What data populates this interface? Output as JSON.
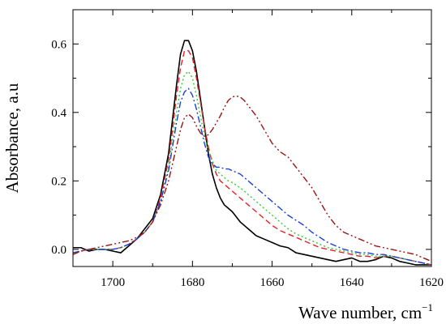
{
  "chart_data": {
    "type": "line",
    "title": "",
    "xlabel": "Wave number, cm",
    "xlabel_superscript": "−1",
    "ylabel": "Absorbance, a.u",
    "xlim": [
      1710,
      1620
    ],
    "x_reversed": true,
    "ylim": [
      -0.05,
      0.7
    ],
    "x_ticks": [
      1700,
      1680,
      1660,
      1640,
      1620
    ],
    "x_tick_labels": [
      "1700",
      "1680",
      "1660",
      "1640",
      "1620"
    ],
    "y_ticks": [
      0.0,
      0.2,
      0.4,
      0.6
    ],
    "y_tick_labels": [
      "0.0",
      "0.2",
      "0.4",
      "0.6"
    ],
    "grid": false,
    "legend": "none",
    "series": [
      {
        "color": "#000000",
        "dash": "solid",
        "x": [
          1710,
          1708,
          1706,
          1704,
          1702,
          1700,
          1698,
          1696,
          1694,
          1692,
          1690,
          1688,
          1686,
          1685,
          1684,
          1683,
          1682,
          1681,
          1680,
          1679,
          1678,
          1677,
          1676,
          1675,
          1674,
          1673,
          1672,
          1671,
          1670,
          1668,
          1666,
          1664,
          1662,
          1660,
          1658,
          1656,
          1654,
          1652,
          1650,
          1648,
          1646,
          1644,
          1642,
          1640,
          1638,
          1636,
          1634,
          1632,
          1630,
          1628,
          1626,
          1624,
          1622,
          1620
        ],
        "y": [
          0.005,
          0.005,
          -0.005,
          0.0,
          0.0,
          -0.005,
          -0.01,
          0.01,
          0.03,
          0.06,
          0.09,
          0.16,
          0.28,
          0.38,
          0.48,
          0.57,
          0.61,
          0.61,
          0.58,
          0.52,
          0.44,
          0.36,
          0.28,
          0.22,
          0.18,
          0.15,
          0.13,
          0.12,
          0.11,
          0.08,
          0.06,
          0.04,
          0.03,
          0.02,
          0.01,
          0.005,
          -0.01,
          -0.015,
          -0.02,
          -0.025,
          -0.03,
          -0.035,
          -0.03,
          -0.025,
          -0.035,
          -0.035,
          -0.03,
          -0.02,
          -0.025,
          -0.035,
          -0.04,
          -0.045,
          -0.045,
          -0.045
        ]
      },
      {
        "color": "#e8202a",
        "dash": "dashed",
        "x": [
          1710,
          1708,
          1706,
          1704,
          1702,
          1700,
          1698,
          1696,
          1694,
          1692,
          1690,
          1688,
          1686,
          1685,
          1684,
          1683,
          1682,
          1681,
          1680,
          1679,
          1678,
          1677,
          1676,
          1675,
          1674,
          1673,
          1672,
          1671,
          1670,
          1668,
          1666,
          1664,
          1662,
          1660,
          1658,
          1656,
          1654,
          1652,
          1650,
          1648,
          1646,
          1644,
          1642,
          1640,
          1638,
          1636,
          1634,
          1632,
          1630,
          1628,
          1626,
          1624,
          1622,
          1620
        ],
        "y": [
          -0.01,
          -0.005,
          0.0,
          0.0,
          0.0,
          0.0,
          0.005,
          0.015,
          0.03,
          0.05,
          0.08,
          0.15,
          0.26,
          0.35,
          0.45,
          0.53,
          0.58,
          0.58,
          0.56,
          0.5,
          0.43,
          0.36,
          0.3,
          0.25,
          0.22,
          0.2,
          0.19,
          0.18,
          0.17,
          0.15,
          0.13,
          0.11,
          0.09,
          0.07,
          0.055,
          0.045,
          0.035,
          0.025,
          0.015,
          0.005,
          0.0,
          -0.005,
          -0.01,
          -0.015,
          -0.02,
          -0.02,
          -0.025,
          -0.02,
          -0.02,
          -0.025,
          -0.03,
          -0.035,
          -0.04,
          -0.045
        ]
      },
      {
        "color": "#2ed02e",
        "dash": "dotted",
        "x": [
          1710,
          1708,
          1706,
          1704,
          1702,
          1700,
          1698,
          1696,
          1694,
          1692,
          1690,
          1688,
          1686,
          1685,
          1684,
          1683,
          1682,
          1681,
          1680,
          1679,
          1678,
          1677,
          1676,
          1675,
          1674,
          1673,
          1672,
          1671,
          1670,
          1668,
          1666,
          1664,
          1662,
          1660,
          1658,
          1656,
          1654,
          1652,
          1650,
          1648,
          1646,
          1644,
          1642,
          1640,
          1638,
          1636,
          1634,
          1632,
          1630,
          1628,
          1626,
          1624,
          1622,
          1620
        ],
        "y": [
          -0.01,
          -0.005,
          0.0,
          0.0,
          0.0,
          0.0,
          0.005,
          0.015,
          0.03,
          0.05,
          0.08,
          0.14,
          0.24,
          0.32,
          0.4,
          0.47,
          0.51,
          0.52,
          0.5,
          0.45,
          0.39,
          0.33,
          0.29,
          0.26,
          0.23,
          0.22,
          0.21,
          0.2,
          0.195,
          0.18,
          0.16,
          0.14,
          0.12,
          0.1,
          0.08,
          0.06,
          0.045,
          0.035,
          0.025,
          0.015,
          0.005,
          0.0,
          -0.005,
          -0.01,
          -0.015,
          -0.015,
          -0.02,
          -0.02,
          -0.02,
          -0.025,
          -0.03,
          -0.035,
          -0.04,
          -0.045
        ]
      },
      {
        "color": "#1a3fd8",
        "dash": "dashdot",
        "x": [
          1710,
          1708,
          1706,
          1704,
          1702,
          1700,
          1698,
          1696,
          1694,
          1692,
          1690,
          1688,
          1686,
          1685,
          1684,
          1683,
          1682,
          1681,
          1680,
          1679,
          1678,
          1677,
          1676,
          1675,
          1674,
          1673,
          1672,
          1671,
          1670,
          1668,
          1666,
          1664,
          1662,
          1660,
          1658,
          1656,
          1654,
          1652,
          1650,
          1648,
          1646,
          1644,
          1642,
          1640,
          1638,
          1636,
          1634,
          1632,
          1630,
          1628,
          1626,
          1624,
          1622,
          1620
        ],
        "y": [
          -0.01,
          -0.005,
          0.0,
          0.0,
          0.0,
          0.0,
          0.005,
          0.015,
          0.03,
          0.05,
          0.08,
          0.14,
          0.23,
          0.3,
          0.37,
          0.43,
          0.46,
          0.47,
          0.45,
          0.41,
          0.36,
          0.31,
          0.27,
          0.25,
          0.24,
          0.24,
          0.235,
          0.235,
          0.23,
          0.22,
          0.2,
          0.18,
          0.16,
          0.14,
          0.12,
          0.1,
          0.085,
          0.07,
          0.05,
          0.035,
          0.02,
          0.01,
          0.0,
          -0.005,
          -0.01,
          -0.01,
          -0.015,
          -0.015,
          -0.02,
          -0.025,
          -0.03,
          -0.035,
          -0.04,
          -0.045
        ]
      },
      {
        "color": "#9a1414",
        "dash": "dashdotdot",
        "x": [
          1710,
          1708,
          1706,
          1704,
          1702,
          1700,
          1698,
          1696,
          1694,
          1692,
          1690,
          1688,
          1686,
          1685,
          1684,
          1683,
          1682,
          1681,
          1680,
          1679,
          1678,
          1677,
          1676,
          1675,
          1674,
          1673,
          1672,
          1671,
          1670,
          1669,
          1668,
          1667,
          1666,
          1664,
          1662,
          1660,
          1658,
          1656,
          1654,
          1652,
          1650,
          1648,
          1646,
          1644,
          1642,
          1640,
          1638,
          1636,
          1634,
          1632,
          1630,
          1628,
          1626,
          1624,
          1622,
          1620
        ],
        "y": [
          -0.015,
          -0.005,
          0.0,
          0.005,
          0.01,
          0.015,
          0.02,
          0.025,
          0.035,
          0.05,
          0.08,
          0.13,
          0.2,
          0.25,
          0.3,
          0.35,
          0.385,
          0.395,
          0.385,
          0.36,
          0.34,
          0.33,
          0.335,
          0.35,
          0.37,
          0.39,
          0.415,
          0.435,
          0.445,
          0.448,
          0.445,
          0.435,
          0.42,
          0.39,
          0.35,
          0.31,
          0.285,
          0.27,
          0.24,
          0.21,
          0.18,
          0.14,
          0.1,
          0.07,
          0.05,
          0.04,
          0.03,
          0.02,
          0.01,
          0.005,
          0.0,
          -0.005,
          -0.01,
          -0.015,
          -0.025,
          -0.035
        ]
      }
    ]
  }
}
